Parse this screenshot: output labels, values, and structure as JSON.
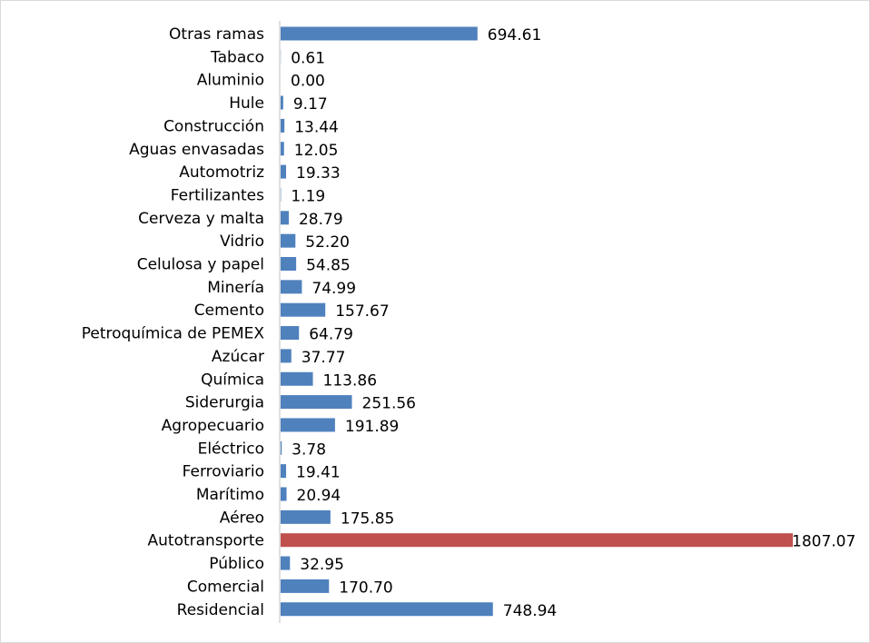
{
  "chart_data": {
    "type": "bar",
    "orientation": "horizontal",
    "categories": [
      "Otras ramas",
      "Tabaco",
      "Aluminio",
      "Hule",
      "Construcción",
      "Aguas envasadas",
      "Automotriz",
      "Fertilizantes",
      "Cerveza y malta",
      "Vidrio",
      "Celulosa y papel",
      "Minería",
      "Cemento",
      "Petroquímica de PEMEX",
      "Azúcar",
      "Química",
      "Siderurgia",
      "Agropecuario",
      "Eléctrico",
      "Ferroviario",
      "Marítimo",
      "Aéreo",
      "Autotransporte",
      "Público",
      "Comercial",
      "Residencial"
    ],
    "values": [
      694.61,
      0.61,
      0.0,
      9.17,
      13.44,
      12.05,
      19.33,
      1.19,
      28.79,
      52.2,
      54.85,
      74.99,
      157.67,
      64.79,
      37.77,
      113.86,
      251.56,
      191.89,
      3.78,
      19.41,
      20.94,
      175.85,
      1807.07,
      32.95,
      170.7,
      748.94
    ],
    "value_labels": [
      "694.61",
      "0.61",
      "0.00",
      "9.17",
      "13.44",
      "12.05",
      "19.33",
      "1.19",
      "28.79",
      "52.20",
      "54.85",
      "74.99",
      "157.67",
      "64.79",
      "37.77",
      "113.86",
      "251.56",
      "191.89",
      "3.78",
      "19.41",
      "20.94",
      "175.85",
      "1807.07",
      "32.95",
      "170.70",
      "748.94"
    ],
    "highlight_index": 22,
    "colors": {
      "bar": "#4f81bd",
      "highlight": "#c0504d",
      "axis": "#bfbfbf"
    },
    "xlim": [
      0,
      1807.07
    ],
    "grid": false,
    "legend": "none",
    "title": "",
    "xlabel": "",
    "ylabel": ""
  }
}
